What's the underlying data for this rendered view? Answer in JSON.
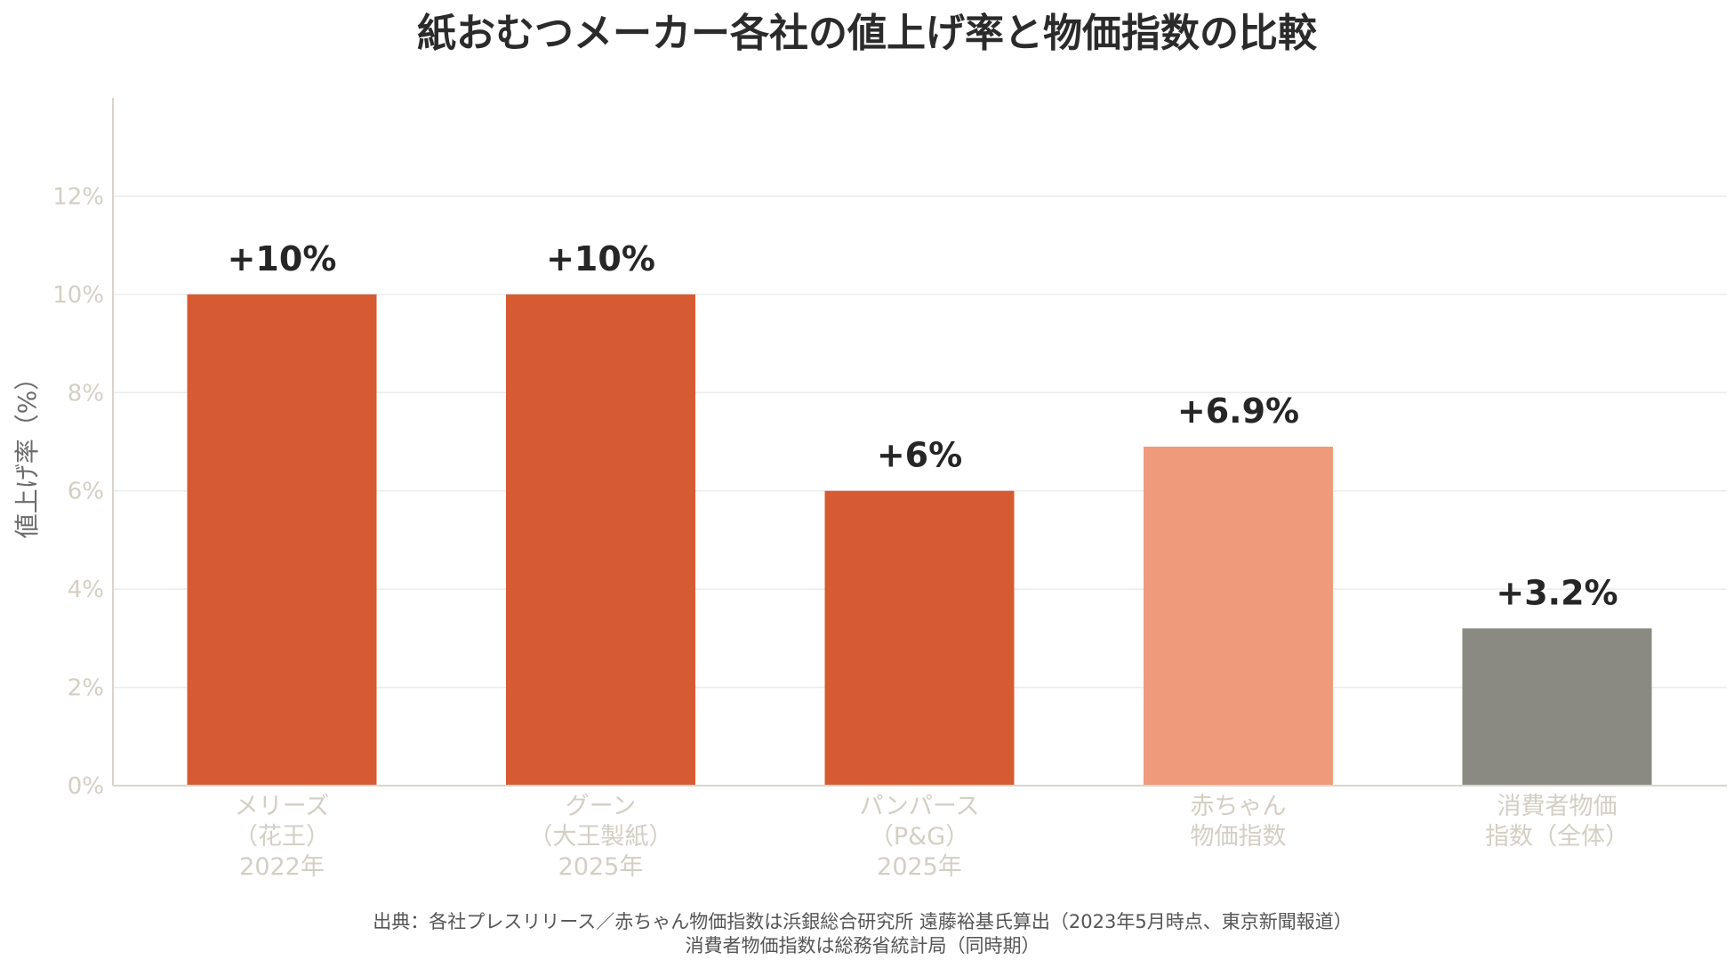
{
  "chart_data": {
    "type": "bar",
    "title": "紙おむつメーカー各社の値上げ率と物価指数の比較",
    "ylabel": "値上げ率（%）",
    "xlabel": "",
    "ylim": [
      0,
      14
    ],
    "yticks": [
      0,
      2,
      4,
      6,
      8,
      10,
      12
    ],
    "ytick_labels": [
      "0%",
      "2%",
      "4%",
      "6%",
      "8%",
      "10%",
      "12%"
    ],
    "grid": true,
    "categories": [
      [
        "メリーズ",
        "（花王）",
        "2022年"
      ],
      [
        "グーン",
        "（大王製紙）",
        "2025年"
      ],
      [
        "パンパース",
        "（P&G）",
        "2025年"
      ],
      [
        "赤ちゃん",
        "物価指数"
      ],
      [
        "消費者物価",
        "指数（全体）"
      ]
    ],
    "values": [
      10,
      10,
      6,
      6.9,
      3.2
    ],
    "value_labels": [
      "+10%",
      "+10%",
      "+6%",
      "+6.9%",
      "+3.2%"
    ],
    "bar_colors": [
      "#d75b32",
      "#d75b32",
      "#d75b32",
      "#f09a7c",
      "#8a8a82"
    ],
    "source": [
      "出典：各社プレスリリース／赤ちゃん物価指数は浜銀総合研究所 遠藤裕基氏算出（2023年5月時点、東京新聞報道）",
      "消費者物価指数は総務省統計局（同時期）"
    ]
  }
}
